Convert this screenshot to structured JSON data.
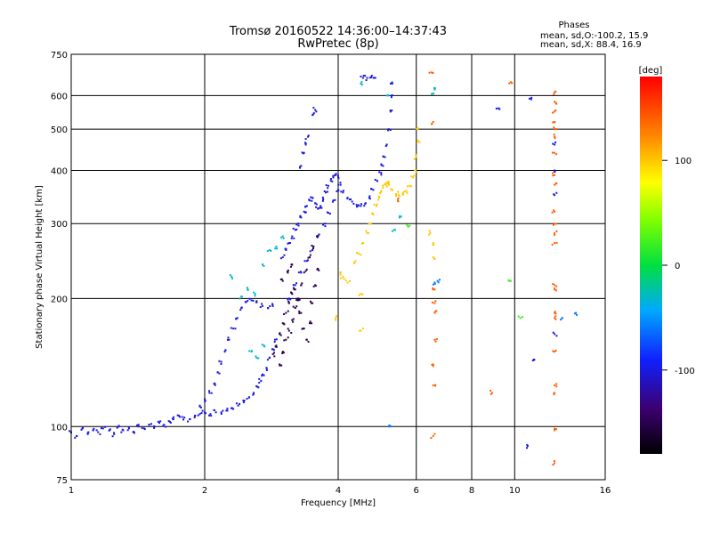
{
  "chart_data": {
    "type": "scatter",
    "title": "Tromsø 20160522 14:36:00–14:37:43",
    "subtitle": "RwPretec (8p)",
    "phases_header": {
      "title": "Phases",
      "line_o": "mean, sd,O:-100.2, 15.9",
      "line_x": "mean, sd,X:  88.4, 16.9"
    },
    "xlabel": "Frequency [MHz]",
    "ylabel": "Stationary phase Virtual Height [km]",
    "xscale": "log",
    "yscale": "log",
    "xlim": [
      1,
      16
    ],
    "ylim": [
      75,
      750
    ],
    "xticks": [
      1,
      2,
      4,
      6,
      8,
      10,
      16
    ],
    "yticks": [
      75,
      100,
      200,
      300,
      400,
      500,
      600,
      750
    ],
    "grid": true,
    "colorbar": {
      "label": "[deg]",
      "range": [
        -180,
        180
      ],
      "ticks": [
        100,
        0,
        -100
      ]
    },
    "series": [
      {
        "phase": -100,
        "points": [
          [
            1.0,
            97
          ],
          [
            1.03,
            95
          ],
          [
            1.06,
            99
          ],
          [
            1.09,
            96
          ],
          [
            1.12,
            98
          ],
          [
            1.15,
            97
          ],
          [
            1.18,
            99
          ],
          [
            1.22,
            98
          ],
          [
            1.25,
            96
          ],
          [
            1.28,
            100
          ],
          [
            1.31,
            98
          ],
          [
            1.35,
            99
          ],
          [
            1.38,
            97
          ],
          [
            1.42,
            100
          ],
          [
            1.46,
            99
          ],
          [
            1.5,
            101
          ],
          [
            1.54,
            100
          ],
          [
            1.58,
            102
          ],
          [
            1.62,
            101
          ],
          [
            1.66,
            103
          ],
          [
            1.7,
            104
          ],
          [
            1.75,
            106
          ],
          [
            1.8,
            105
          ],
          [
            1.85,
            104
          ],
          [
            1.9,
            106
          ],
          [
            1.95,
            107
          ],
          [
            2.0,
            108
          ],
          [
            2.06,
            107
          ],
          [
            2.12,
            108
          ],
          [
            2.18,
            108
          ],
          [
            2.25,
            109
          ],
          [
            2.32,
            110
          ],
          [
            2.38,
            112
          ],
          [
            2.45,
            114
          ],
          [
            2.52,
            117
          ],
          [
            2.58,
            120
          ],
          [
            2.63,
            124
          ],
          [
            2.68,
            128
          ],
          [
            2.72,
            132
          ],
          [
            2.76,
            137
          ],
          [
            2.8,
            145
          ],
          [
            2.84,
            152
          ],
          [
            2.88,
            160
          ],
          [
            1.95,
            112
          ],
          [
            2.0,
            116
          ],
          [
            2.05,
            120
          ],
          [
            2.1,
            126
          ],
          [
            2.14,
            134
          ],
          [
            2.18,
            142
          ],
          [
            2.22,
            150
          ],
          [
            2.27,
            160
          ],
          [
            2.32,
            170
          ],
          [
            2.37,
            180
          ],
          [
            2.42,
            190
          ],
          [
            2.48,
            196
          ],
          [
            2.55,
            198
          ],
          [
            2.62,
            196
          ],
          [
            2.7,
            192
          ],
          [
            2.78,
            190
          ],
          [
            2.85,
            192
          ],
          [
            3.0,
            250
          ],
          [
            3.05,
            260
          ],
          [
            3.1,
            270
          ],
          [
            3.15,
            280
          ],
          [
            3.2,
            290
          ],
          [
            3.25,
            300
          ],
          [
            3.3,
            310
          ],
          [
            3.35,
            320
          ],
          [
            3.4,
            330
          ],
          [
            3.45,
            340
          ],
          [
            3.5,
            345
          ],
          [
            3.55,
            335
          ],
          [
            3.6,
            325
          ],
          [
            3.65,
            330
          ],
          [
            3.7,
            342
          ],
          [
            3.75,
            355
          ],
          [
            3.8,
            368
          ],
          [
            3.85,
            378
          ],
          [
            3.9,
            385
          ],
          [
            3.95,
            390
          ],
          [
            4.0,
            385
          ],
          [
            4.05,
            370
          ],
          [
            4.1,
            355
          ],
          [
            4.2,
            345
          ],
          [
            4.3,
            338
          ],
          [
            4.4,
            332
          ],
          [
            4.5,
            330
          ],
          [
            4.6,
            334
          ],
          [
            4.7,
            345
          ],
          [
            4.8,
            360
          ],
          [
            4.9,
            378
          ],
          [
            5.0,
            395
          ],
          [
            5.05,
            410
          ],
          [
            5.1,
            430
          ],
          [
            5.15,
            460
          ],
          [
            5.2,
            500
          ],
          [
            5.25,
            550
          ],
          [
            5.28,
            600
          ],
          [
            5.3,
            640
          ],
          [
            3.1,
            200
          ],
          [
            3.2,
            215
          ],
          [
            3.3,
            230
          ],
          [
            3.4,
            245
          ],
          [
            3.5,
            260
          ],
          [
            3.6,
            280
          ],
          [
            3.7,
            298
          ],
          [
            3.8,
            318
          ],
          [
            3.9,
            340
          ],
          [
            4.0,
            360
          ],
          [
            3.35,
            440
          ],
          [
            3.38,
            460
          ],
          [
            3.42,
            480
          ],
          [
            3.3,
            410
          ],
          [
            3.5,
            540
          ],
          [
            3.55,
            555
          ],
          [
            4.55,
            660
          ],
          [
            4.65,
            660
          ],
          [
            4.75,
            662
          ],
          [
            4.85,
            660
          ],
          [
            9.2,
            560
          ],
          [
            10.8,
            590
          ],
          [
            12.3,
            460
          ],
          [
            12.3,
            400
          ],
          [
            12.3,
            165
          ],
          [
            11.0,
            143
          ],
          [
            10.7,
            90
          ],
          [
            12.3,
            350
          ]
        ]
      },
      {
        "phase": -150,
        "points": [
          [
            2.85,
            148
          ],
          [
            2.9,
            155
          ],
          [
            2.95,
            165
          ],
          [
            3.0,
            175
          ],
          [
            3.05,
            185
          ],
          [
            3.1,
            195
          ],
          [
            3.15,
            205
          ],
          [
            3.2,
            210
          ],
          [
            3.25,
            198
          ],
          [
            3.3,
            185
          ],
          [
            3.35,
            170
          ],
          [
            3.4,
            160
          ],
          [
            3.45,
            175
          ],
          [
            3.5,
            195
          ],
          [
            3.55,
            215
          ],
          [
            3.6,
            235
          ],
          [
            2.95,
            140
          ],
          [
            3.0,
            150
          ],
          [
            3.05,
            160
          ],
          [
            3.1,
            168
          ],
          [
            3.15,
            178
          ],
          [
            3.2,
            190
          ],
          [
            3.25,
            200
          ],
          [
            3.3,
            215
          ],
          [
            3.38,
            232
          ],
          [
            3.45,
            250
          ],
          [
            3.52,
            265
          ],
          [
            3.58,
            280
          ],
          [
            3.0,
            220
          ],
          [
            3.08,
            230
          ],
          [
            3.15,
            240
          ]
        ]
      },
      {
        "phase": -30,
        "points": [
          [
            2.3,
            225
          ],
          [
            2.4,
            200
          ],
          [
            2.5,
            210
          ],
          [
            2.6,
            205
          ],
          [
            2.7,
            240
          ],
          [
            2.8,
            260
          ],
          [
            2.9,
            265
          ],
          [
            3.0,
            280
          ],
          [
            2.55,
            150
          ],
          [
            2.62,
            145
          ],
          [
            2.72,
            155
          ],
          [
            4.5,
            640
          ],
          [
            5.15,
            600
          ],
          [
            5.5,
            310
          ],
          [
            5.35,
            290
          ],
          [
            6.5,
            605
          ],
          [
            6.6,
            620
          ]
        ]
      },
      {
        "phase": 100,
        "points": [
          [
            4.05,
            230
          ],
          [
            4.1,
            225
          ],
          [
            4.2,
            218
          ],
          [
            4.35,
            242
          ],
          [
            4.45,
            255
          ],
          [
            4.55,
            270
          ],
          [
            4.65,
            285
          ],
          [
            4.72,
            300
          ],
          [
            4.8,
            315
          ],
          [
            4.88,
            330
          ],
          [
            4.95,
            345
          ],
          [
            5.0,
            358
          ],
          [
            5.05,
            368
          ],
          [
            5.1,
            372
          ],
          [
            5.15,
            375
          ],
          [
            5.2,
            370
          ],
          [
            5.3,
            360
          ],
          [
            5.4,
            352
          ],
          [
            5.5,
            348
          ],
          [
            5.6,
            352
          ],
          [
            5.7,
            358
          ],
          [
            5.8,
            368
          ],
          [
            5.9,
            385
          ],
          [
            5.95,
            400
          ],
          [
            6.0,
            430
          ],
          [
            6.05,
            470
          ],
          [
            6.05,
            500
          ],
          [
            4.5,
            205
          ],
          [
            6.45,
            285
          ],
          [
            6.55,
            270
          ],
          [
            6.55,
            250
          ],
          [
            4.5,
            168
          ],
          [
            3.95,
            180
          ]
        ]
      },
      {
        "phase": 140,
        "points": [
          [
            6.5,
            680
          ],
          [
            6.55,
            520
          ],
          [
            6.6,
            210
          ],
          [
            6.6,
            195
          ],
          [
            6.6,
            185
          ],
          [
            6.6,
            160
          ],
          [
            6.55,
            140
          ],
          [
            6.55,
            125
          ],
          [
            6.55,
            95
          ],
          [
            8.9,
            120
          ],
          [
            9.8,
            645
          ],
          [
            12.3,
            610
          ],
          [
            12.3,
            580
          ],
          [
            12.3,
            550
          ],
          [
            12.3,
            520
          ],
          [
            12.3,
            500
          ],
          [
            12.3,
            480
          ],
          [
            12.3,
            440
          ],
          [
            12.3,
            390
          ],
          [
            12.3,
            370
          ],
          [
            12.3,
            320
          ],
          [
            12.3,
            300
          ],
          [
            12.3,
            285
          ],
          [
            12.3,
            270
          ],
          [
            12.3,
            215
          ],
          [
            12.3,
            210
          ],
          [
            12.3,
            185
          ],
          [
            12.3,
            180
          ],
          [
            12.3,
            150
          ],
          [
            12.3,
            125
          ],
          [
            12.3,
            120
          ],
          [
            12.3,
            98
          ],
          [
            12.3,
            82
          ],
          [
            5.45,
            340
          ]
        ]
      },
      {
        "phase": 20,
        "points": [
          [
            5.75,
            295
          ],
          [
            9.8,
            220
          ],
          [
            10.3,
            180
          ]
        ]
      },
      {
        "phase": -60,
        "points": [
          [
            13.8,
            183
          ],
          [
            12.8,
            180
          ],
          [
            6.6,
            218
          ],
          [
            6.7,
            220
          ],
          [
            5.2,
            100
          ]
        ]
      }
    ]
  }
}
